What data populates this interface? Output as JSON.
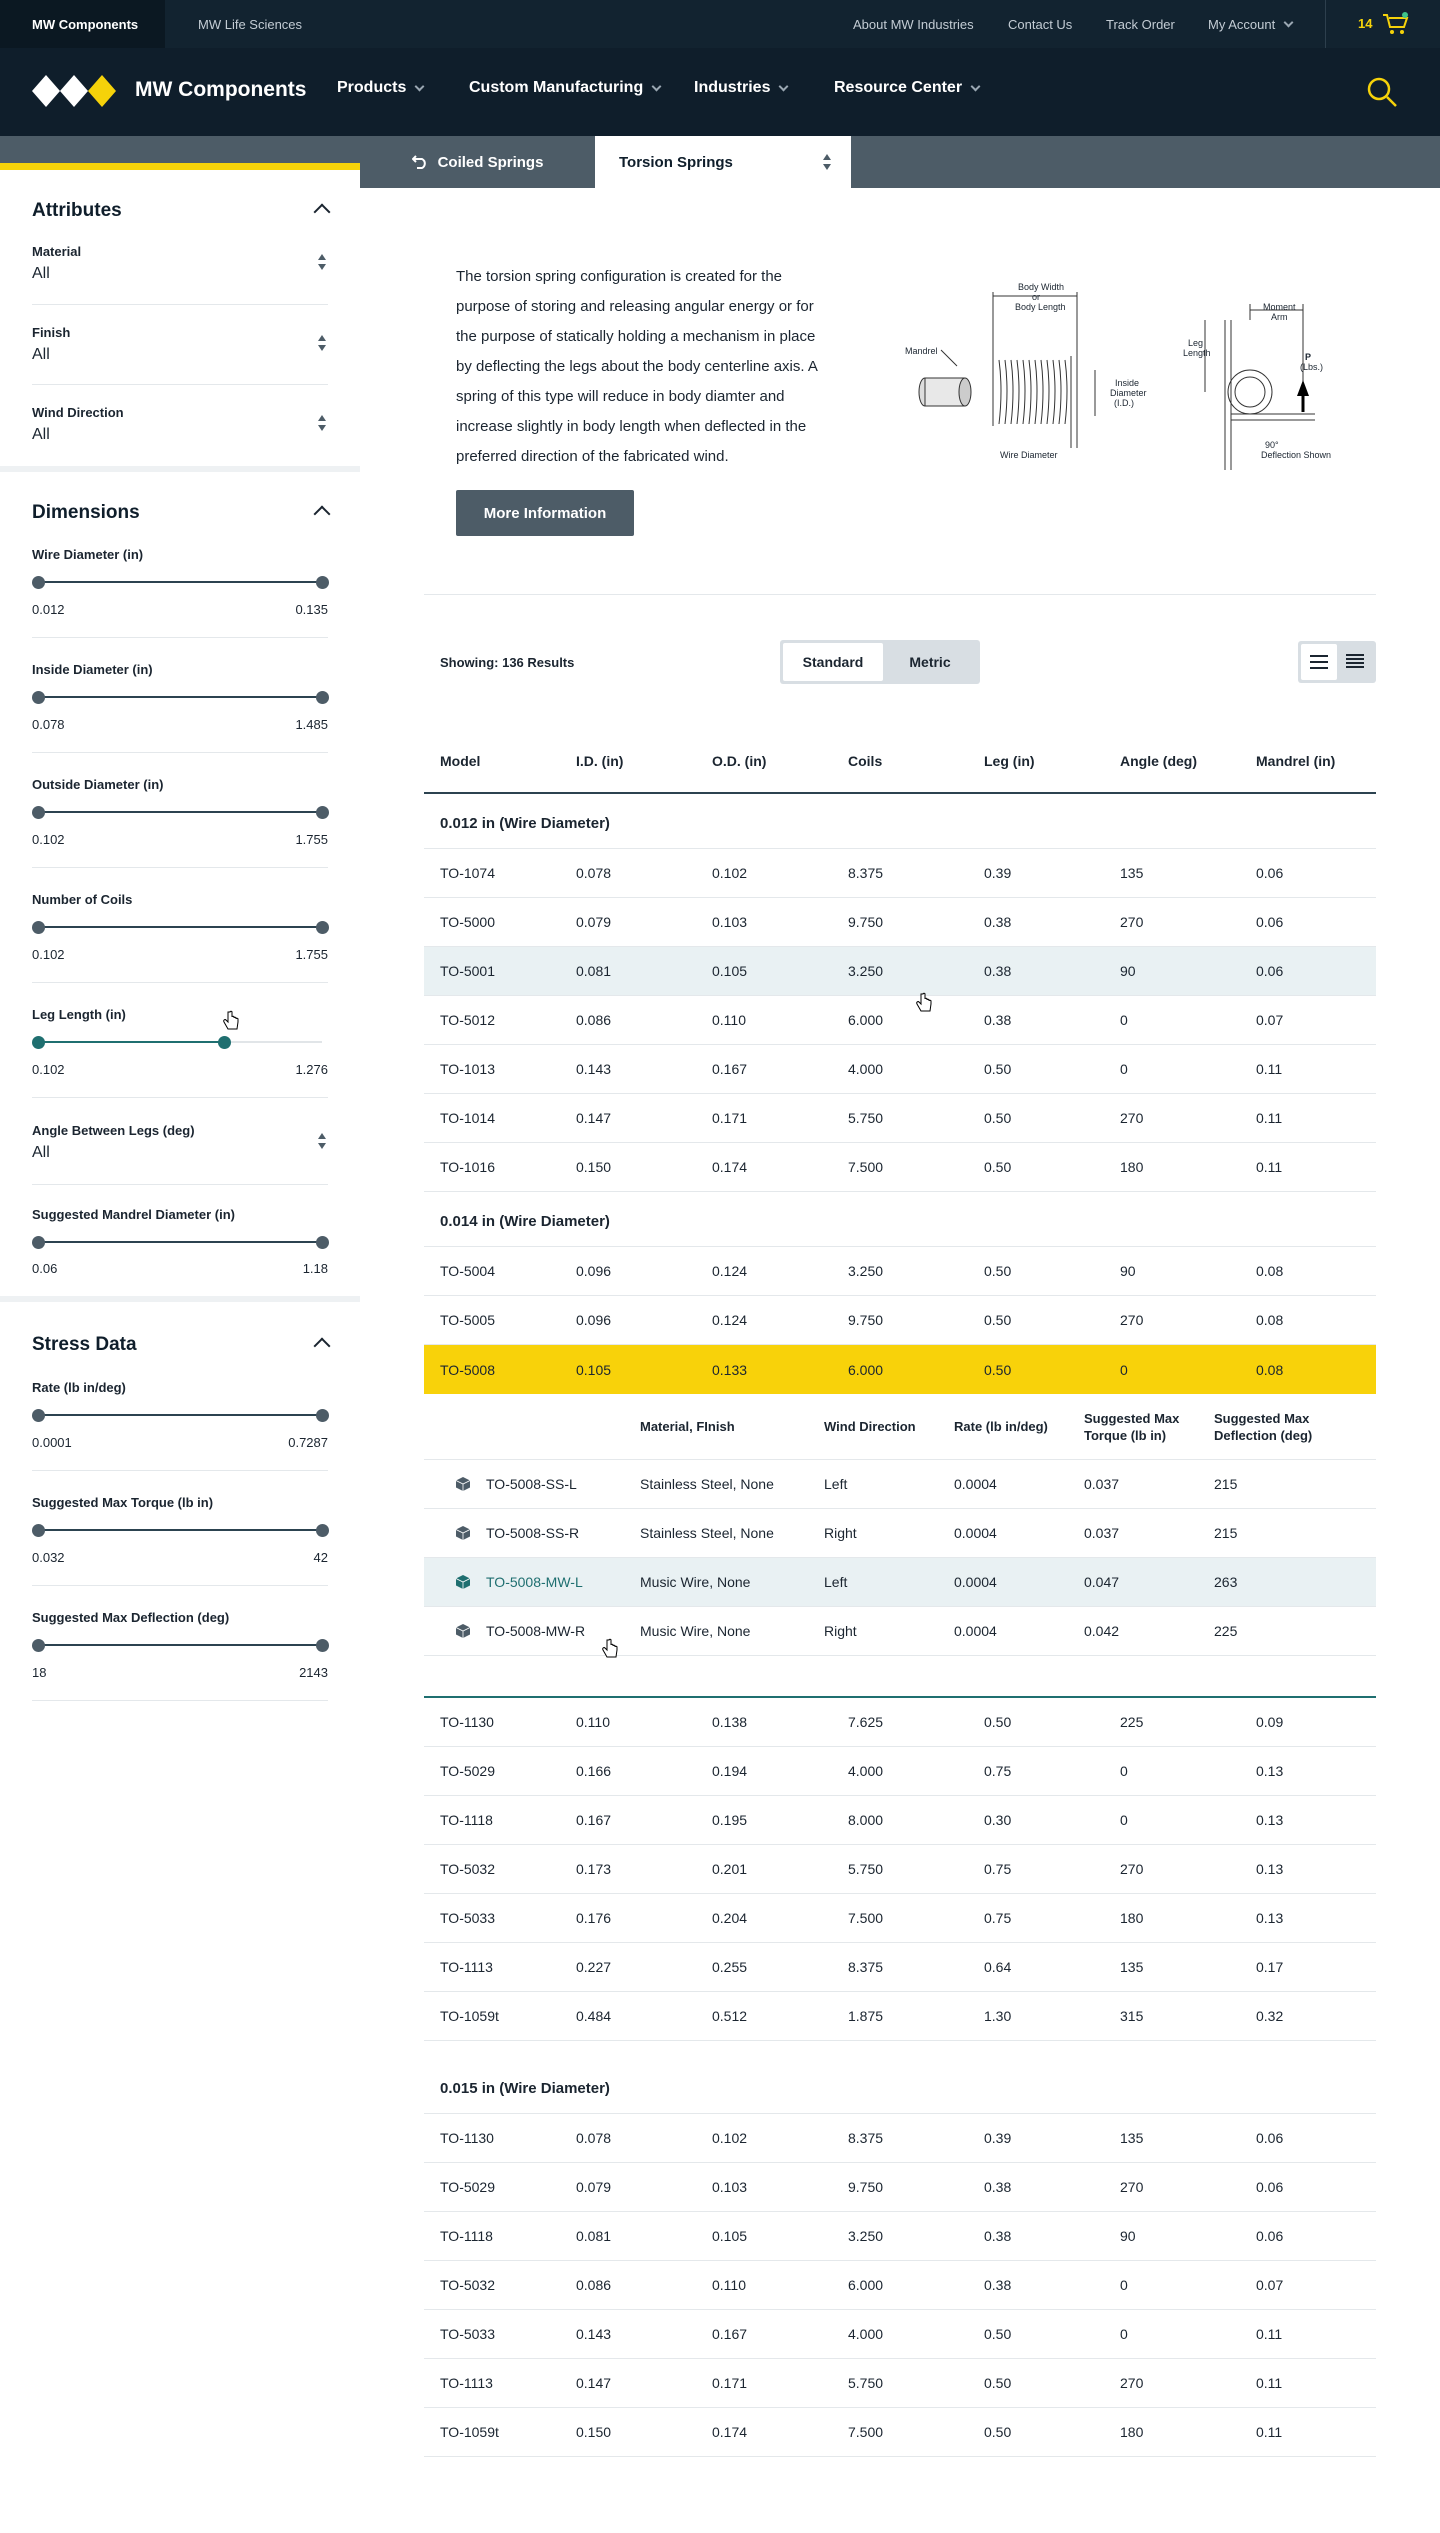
{
  "topbar": {
    "site_a": "MW Components",
    "site_b": "MW Life Sciences",
    "links": [
      "About MW Industries",
      "Contact Us",
      "Track Order",
      "My Account"
    ],
    "cart_count": "14"
  },
  "nav": {
    "brand": "MW Components",
    "items": [
      "Products",
      "Custom Manufacturing",
      "Industries",
      "Resource Center"
    ]
  },
  "sidebar": {
    "attributes": {
      "title": "Attributes",
      "filters": [
        {
          "label": "Material",
          "value": "All"
        },
        {
          "label": "Finish",
          "value": "All"
        },
        {
          "label": "Wind Direction",
          "value": "All"
        }
      ]
    },
    "dimensions": {
      "title": "Dimensions",
      "ranges": [
        {
          "label": "Wire Diameter (in)",
          "min": "0.012",
          "max": "0.135"
        },
        {
          "label": "Inside Diameter (in)",
          "min": "0.078",
          "max": "1.485"
        },
        {
          "label": "Outside Diameter (in)",
          "min": "0.102",
          "max": "1.755"
        },
        {
          "label": "Number of Coils",
          "min": "0.102",
          "max": "1.755"
        },
        {
          "label": "Leg Length (in)",
          "min": "0.102",
          "max": "1.276"
        }
      ],
      "angle": {
        "label": "Angle Between Legs (deg)",
        "value": "All"
      },
      "mandrel": {
        "label": "Suggested Mandrel Diameter (in)",
        "min": "0.06",
        "max": "1.18"
      }
    },
    "stress": {
      "title": "Stress Data",
      "ranges": [
        {
          "label": "Rate (lb in/deg)",
          "min": "0.0001",
          "max": "0.7287"
        },
        {
          "label": "Suggested Max Torque (lb in)",
          "min": "0.032",
          "max": "42"
        },
        {
          "label": "Suggested Max Deflection (deg)",
          "min": "18",
          "max": "2143"
        }
      ]
    }
  },
  "tabs": {
    "back": "Coiled Springs",
    "current": "Torsion Springs"
  },
  "intro": {
    "text": "The torsion spring configuration is created for the purpose of storing and releasing angular energy or for the purpose of statically holding a mechanism in place by deflecting the legs about the body centerline axis. A spring of this type will reduce in body diamter and increase slightly in body length when deflected in the preferred direction of the fabricated wind.",
    "button": "More Information"
  },
  "diagram": {
    "mandrel": "Mandrel",
    "body_width_1": "Body Width",
    "body_width_2": "or",
    "body_width_3": "Body Length",
    "inside_1": "Inside",
    "inside_2": "Diameter",
    "inside_3": "(I.D.)",
    "wire": "Wire Diameter",
    "leg_1": "Leg",
    "leg_2": "Length",
    "moment_1": "Moment",
    "moment_2": "Arm",
    "p_1": "P",
    "p_2": "(Lbs.)",
    "defl_1": "90°",
    "defl_2": "Deflection Shown"
  },
  "results": {
    "showing": "Showing: 136 Results",
    "units": [
      "Standard",
      "Metric"
    ],
    "columns": [
      "Model",
      "I.D. (in)",
      "O.D. (in)",
      "Coils",
      "Leg (in)",
      "Angle (deg)",
      "Mandrel (in)"
    ],
    "group1": {
      "title": "0.012 in (Wire Diameter)",
      "rows": [
        [
          "TO-1074",
          "0.078",
          "0.102",
          "8.375",
          "0.39",
          "135",
          "0.06"
        ],
        [
          "TO-5000",
          "0.079",
          "0.103",
          "9.750",
          "0.38",
          "270",
          "0.06"
        ],
        [
          "TO-5001",
          "0.081",
          "0.105",
          "3.250",
          "0.38",
          "90",
          "0.06"
        ],
        [
          "TO-5012",
          "0.086",
          "0.110",
          "6.000",
          "0.38",
          "0",
          "0.07"
        ],
        [
          "TO-1013",
          "0.143",
          "0.167",
          "4.000",
          "0.50",
          "0",
          "0.11"
        ],
        [
          "TO-1014",
          "0.147",
          "0.171",
          "5.750",
          "0.50",
          "270",
          "0.11"
        ],
        [
          "TO-1016",
          "0.150",
          "0.174",
          "7.500",
          "0.50",
          "180",
          "0.11"
        ]
      ]
    },
    "group2": {
      "title": "0.014 in (Wire Diameter)",
      "rows_before": [
        [
          "TO-5004",
          "0.096",
          "0.124",
          "3.250",
          "0.50",
          "90",
          "0.08"
        ],
        [
          "TO-5005",
          "0.096",
          "0.124",
          "9.750",
          "0.50",
          "270",
          "0.08"
        ]
      ],
      "selected": [
        "TO-5008",
        "0.105",
        "0.133",
        "6.000",
        "0.50",
        "0",
        "0.08"
      ],
      "sub_columns": [
        "Material, FInish",
        "Wind Direction",
        "Rate (lb in/deg)",
        "Suggested Max Torque (lb in)",
        "Suggested Max Deflection (deg)"
      ],
      "sub_rows": [
        [
          "TO-5008-SS-L",
          "Stainless Steel, None",
          "Left",
          "0.0004",
          "0.037",
          "215"
        ],
        [
          "TO-5008-SS-R",
          "Stainless Steel, None",
          "Right",
          "0.0004",
          "0.037",
          "215"
        ],
        [
          "TO-5008-MW-L",
          "Music Wire, None",
          "Left",
          "0.0004",
          "0.047",
          "263"
        ],
        [
          "TO-5008-MW-R",
          "Music Wire, None",
          "Right",
          "0.0004",
          "0.042",
          "225"
        ]
      ],
      "rows_after": [
        [
          "TO-1130",
          "0.110",
          "0.138",
          "7.625",
          "0.50",
          "225",
          "0.09"
        ],
        [
          "TO-5029",
          "0.166",
          "0.194",
          "4.000",
          "0.75",
          "0",
          "0.13"
        ],
        [
          "TO-1118",
          "0.167",
          "0.195",
          "8.000",
          "0.30",
          "0",
          "0.13"
        ],
        [
          "TO-5032",
          "0.173",
          "0.201",
          "5.750",
          "0.75",
          "270",
          "0.13"
        ],
        [
          "TO-5033",
          "0.176",
          "0.204",
          "7.500",
          "0.75",
          "180",
          "0.13"
        ],
        [
          "TO-1113",
          "0.227",
          "0.255",
          "8.375",
          "0.64",
          "135",
          "0.17"
        ],
        [
          "TO-1059t",
          "0.484",
          "0.512",
          "1.875",
          "1.30",
          "315",
          "0.32"
        ]
      ]
    },
    "group3": {
      "title": "0.015 in (Wire Diameter)",
      "rows": [
        [
          "TO-1130",
          "0.078",
          "0.102",
          "8.375",
          "0.39",
          "135",
          "0.06"
        ],
        [
          "TO-5029",
          "0.079",
          "0.103",
          "9.750",
          "0.38",
          "270",
          "0.06"
        ],
        [
          "TO-1118",
          "0.081",
          "0.105",
          "3.250",
          "0.38",
          "90",
          "0.06"
        ],
        [
          "TO-5032",
          "0.086",
          "0.110",
          "6.000",
          "0.38",
          "0",
          "0.07"
        ],
        [
          "TO-5033",
          "0.143",
          "0.167",
          "4.000",
          "0.50",
          "0",
          "0.11"
        ],
        [
          "TO-1113",
          "0.147",
          "0.171",
          "5.750",
          "0.50",
          "270",
          "0.11"
        ],
        [
          "TO-1059t",
          "0.150",
          "0.174",
          "7.500",
          "0.50",
          "180",
          "0.11"
        ]
      ]
    }
  },
  "colors": {
    "accent": "#f5d20a",
    "teal": "#1f6f70",
    "navy": "#0f1e2b",
    "slate": "#4d5c67"
  }
}
